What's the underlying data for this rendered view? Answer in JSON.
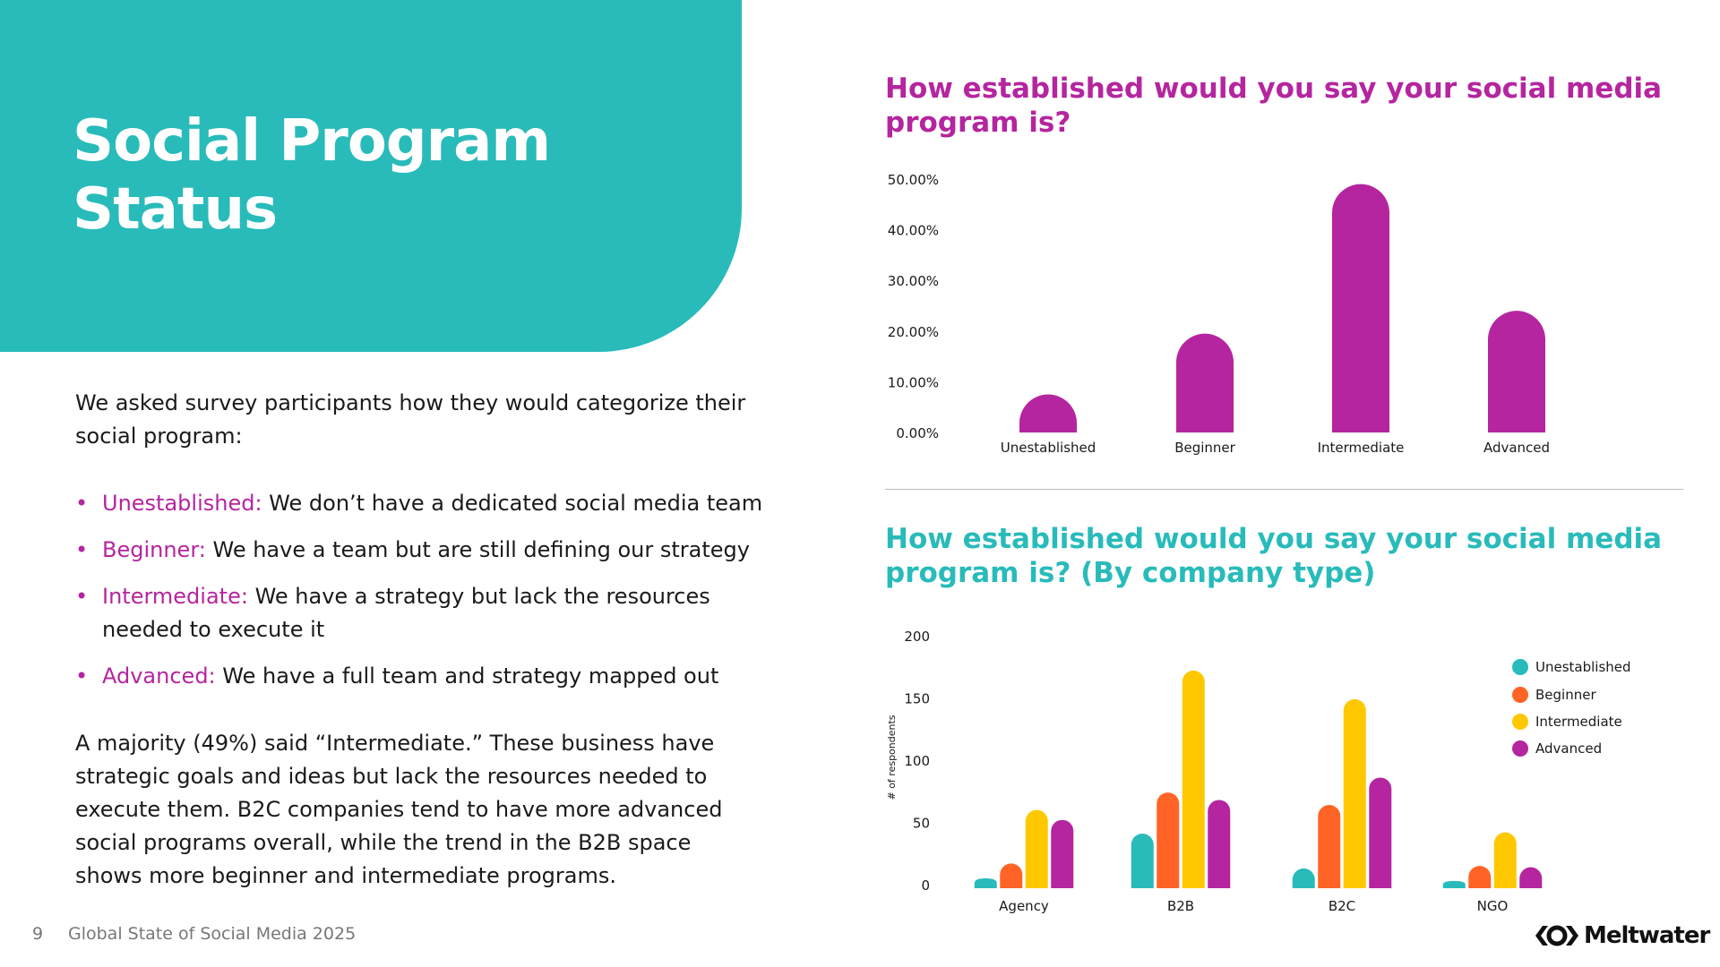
{
  "hero": {
    "title_line1": "Social Program",
    "title_line2": "Status"
  },
  "intro": "We asked survey participants how they would categorize their social program:",
  "definitions": [
    {
      "term": "Unestablished:",
      "text": " We don’t have a dedicated social media team"
    },
    {
      "term": "Beginner:",
      "text": " We have a team but are still defining our strategy"
    },
    {
      "term": "Intermediate:",
      "text": " We have a strategy but lack the resources needed to execute it"
    },
    {
      "term": "Advanced:",
      "text": " We have a full team and strategy mapped out"
    }
  ],
  "summary": "A majority (49%) said “Intermediate.” These business have strategic goals and ideas but lack the resources needed to execute them. B2C companies tend to have more advanced social programs overall, while the trend in the B2B space shows more beginner and intermediate programs.",
  "footer": {
    "page": "9",
    "publication": "Global State of Social Media 2025"
  },
  "logo": {
    "text": "Meltwater"
  },
  "colors": {
    "teal": "#28BBBA",
    "orange": "#FF6426",
    "yellow": "#FFC800",
    "magenta": "#B5259F"
  },
  "chart_data": [
    {
      "type": "bar",
      "title": "How established would you say your social media program is?",
      "categories": [
        "Unestablished",
        "Beginner",
        "Intermediate",
        "Advanced"
      ],
      "values": [
        7.5,
        19.5,
        49,
        24
      ],
      "unit": "%",
      "ylim": [
        0,
        50
      ],
      "yticks": [
        "0.00%",
        "10.00%",
        "20.00%",
        "30.00%",
        "40.00%",
        "50.00%"
      ],
      "color": "#B5259F",
      "grid": false
    },
    {
      "type": "bar",
      "title": "How established would you say your social media program is? (By company type)",
      "categories": [
        "Agency",
        "B2B",
        "B2C",
        "NGO"
      ],
      "ylabel": "# of respondents",
      "ylim": [
        0,
        200
      ],
      "yticks": [
        "0",
        "50",
        "100",
        "150",
        "200"
      ],
      "legend_position": "right",
      "grid": false,
      "series": [
        {
          "name": "Unestablished",
          "color": "#28BBBA",
          "values": [
            5,
            41,
            13,
            3
          ]
        },
        {
          "name": "Beginner",
          "color": "#FF6426",
          "values": [
            17,
            74,
            64,
            15
          ]
        },
        {
          "name": "Intermediate",
          "color": "#FFC800",
          "values": [
            60,
            172,
            149,
            42
          ]
        },
        {
          "name": "Advanced",
          "color": "#B5259F",
          "values": [
            52,
            68,
            86,
            14
          ]
        }
      ]
    }
  ]
}
